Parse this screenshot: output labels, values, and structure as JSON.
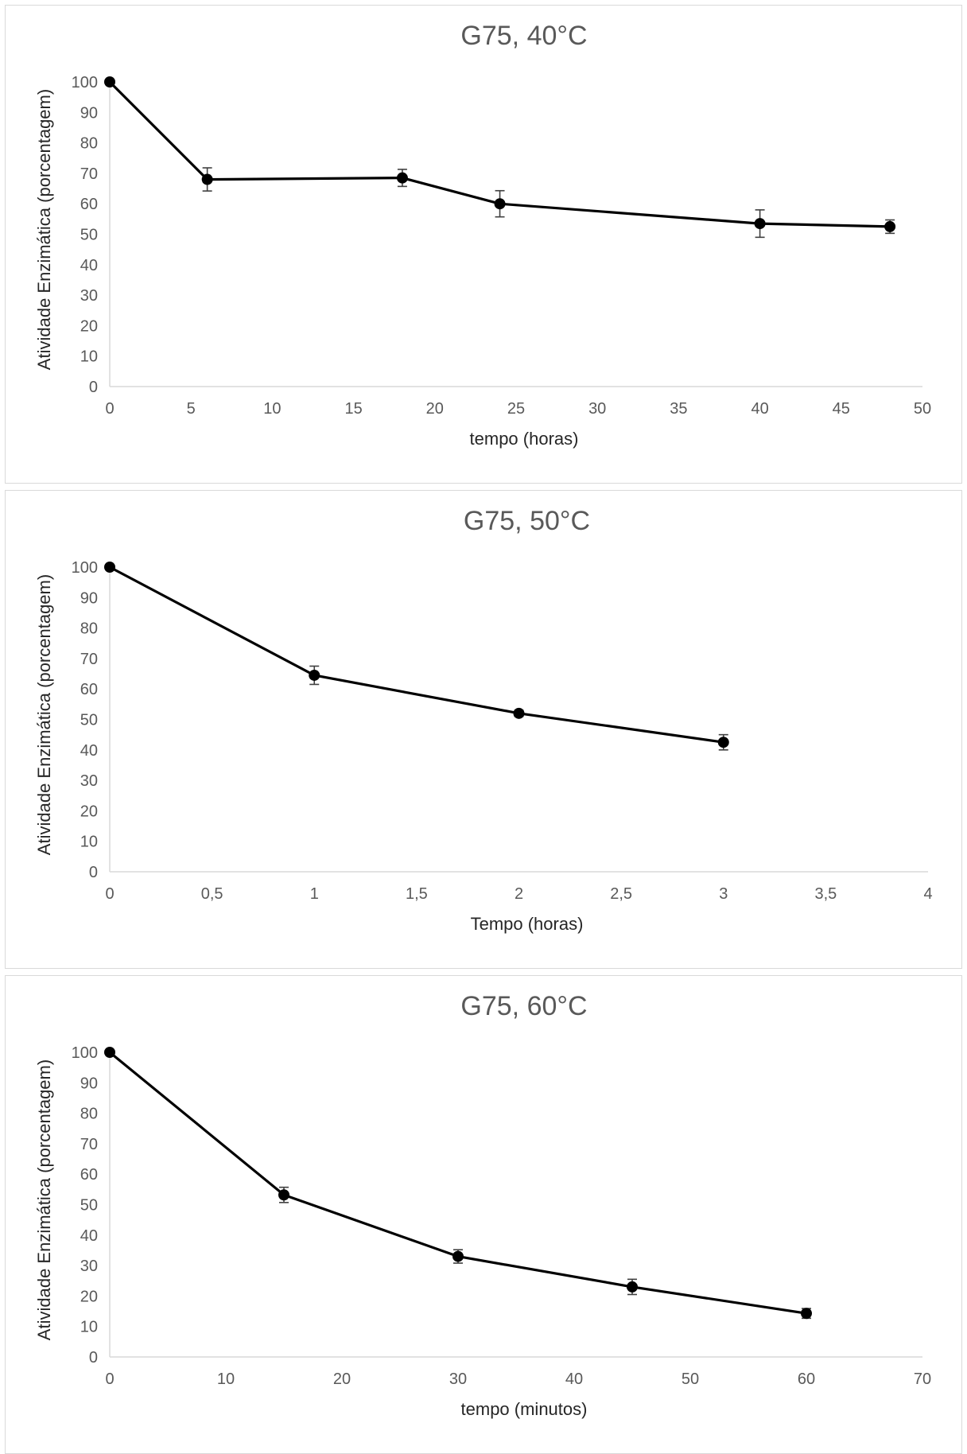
{
  "chart_data": [
    {
      "type": "line",
      "title": "G75, 40°C",
      "xlabel": "tempo (horas)",
      "ylabel": "Atividade Enzimática (porcentagem)",
      "xlim": [
        0,
        50
      ],
      "ylim": [
        0,
        100
      ],
      "x_ticks": [
        "0",
        "5",
        "10",
        "15",
        "20",
        "25",
        "30",
        "35",
        "40",
        "45",
        "50"
      ],
      "y_ticks": [
        "0",
        "10",
        "20",
        "30",
        "40",
        "50",
        "60",
        "70",
        "80",
        "90",
        "100"
      ],
      "grid": false,
      "series": [
        {
          "x": [
            0,
            6,
            18,
            24,
            40,
            48
          ],
          "y": [
            100,
            68,
            68.5,
            60,
            53.5,
            52.5
          ],
          "error": [
            0,
            3.8,
            2.8,
            4.3,
            4.5,
            2.2
          ]
        }
      ]
    },
    {
      "type": "line",
      "title": "G75, 50°C",
      "xlabel": "Tempo (horas)",
      "ylabel": "Atividade Enzimática (porcentagem)",
      "xlim": [
        0,
        4
      ],
      "ylim": [
        0,
        100
      ],
      "x_ticks": [
        "0",
        "0,5",
        "1",
        "1,5",
        "2",
        "2,5",
        "3",
        "3,5",
        "4"
      ],
      "y_ticks": [
        "0",
        "10",
        "20",
        "30",
        "40",
        "50",
        "60",
        "70",
        "80",
        "90",
        "100"
      ],
      "grid": false,
      "series": [
        {
          "x": [
            0,
            1,
            2,
            3
          ],
          "y": [
            100,
            64.5,
            52,
            42.5
          ],
          "error": [
            0,
            3,
            1,
            2.5
          ]
        }
      ]
    },
    {
      "type": "line",
      "title": "G75, 60°C",
      "xlabel": "tempo (minutos)",
      "ylabel": "Atividade Enzimática (porcentagem)",
      "xlim": [
        0,
        70
      ],
      "ylim": [
        0,
        100
      ],
      "x_ticks": [
        "0",
        "10",
        "20",
        "30",
        "40",
        "50",
        "60",
        "70"
      ],
      "y_ticks": [
        "0",
        "10",
        "20",
        "30",
        "40",
        "50",
        "60",
        "70",
        "80",
        "90",
        "100"
      ],
      "grid": false,
      "series": [
        {
          "x": [
            0,
            15,
            30,
            45,
            60
          ],
          "y": [
            100,
            53.2,
            33,
            23,
            14.3
          ],
          "error": [
            0,
            2.5,
            2.2,
            2.5,
            1.6
          ]
        }
      ]
    }
  ]
}
